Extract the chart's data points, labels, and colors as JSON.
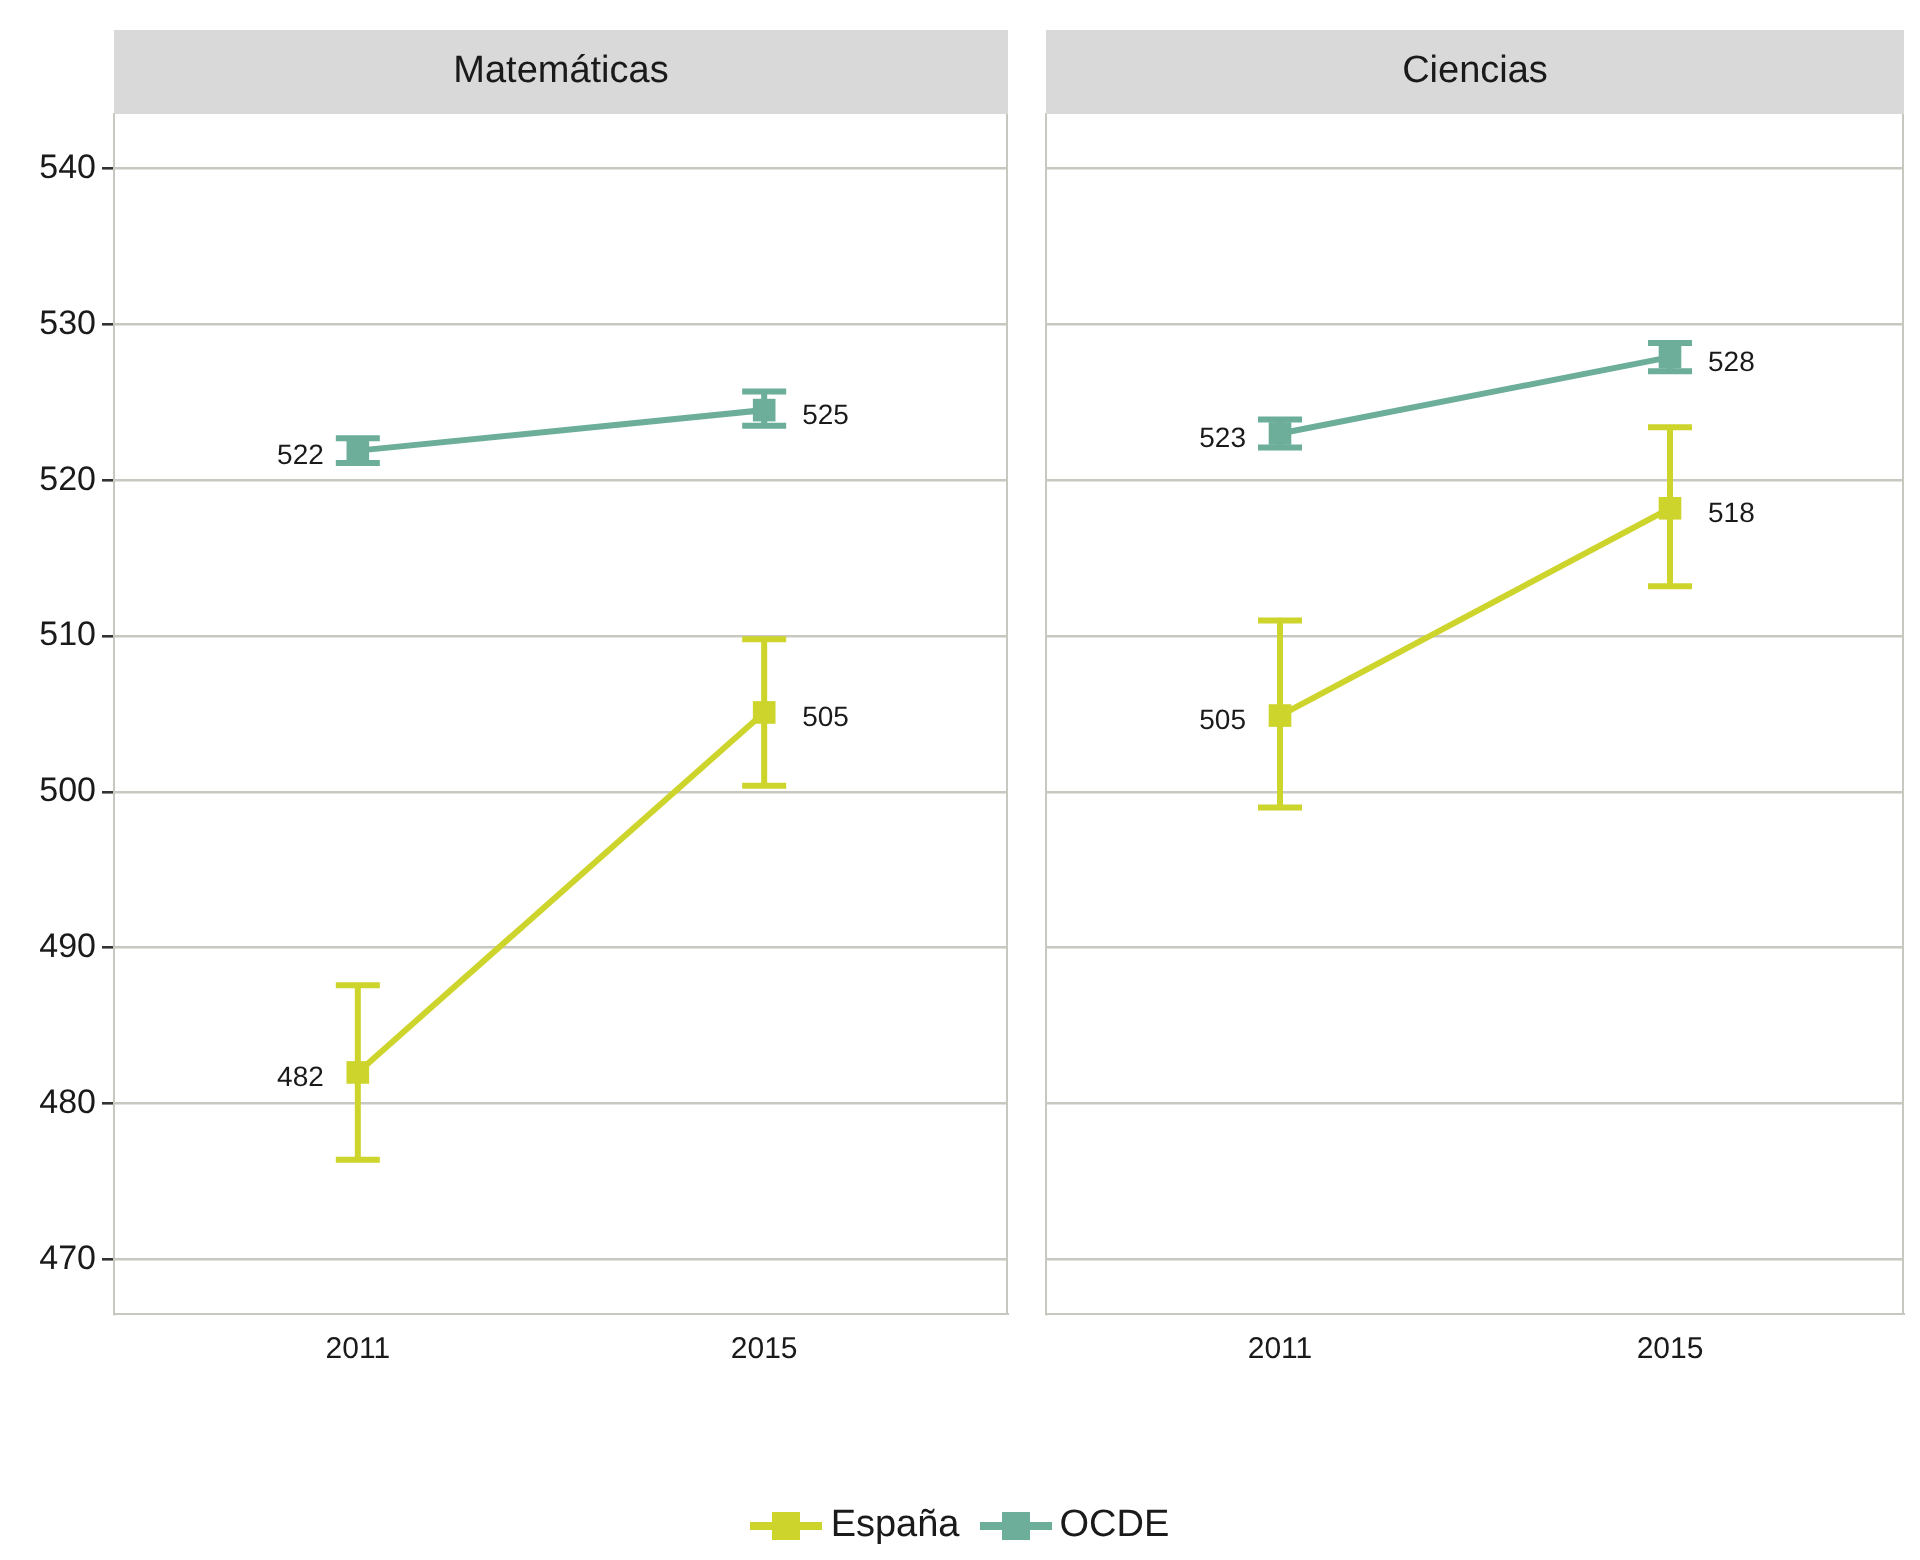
{
  "chart_data": [
    {
      "type": "line",
      "title": "Matemáticas",
      "categories": [
        "2011",
        "2015"
      ],
      "ylim": [
        466.5,
        543.5
      ],
      "yticks": [
        470,
        480,
        490,
        500,
        510,
        520,
        530,
        540
      ],
      "grid": "y",
      "legend": "bottom",
      "marker": "square",
      "line_style": "solid",
      "series": [
        {
          "name": "España",
          "color": "#cdd42b",
          "values": [
            482,
            505.1
          ],
          "errors": [
            [
              476.4,
              487.6
            ],
            [
              500.4,
              509.8
            ]
          ],
          "value_labels": [
            "482",
            "505"
          ]
        },
        {
          "name": "OCDE",
          "color": "#6cae99",
          "values": [
            521.9,
            524.5
          ],
          "errors": [
            [
              521.1,
              522.7
            ],
            [
              523.5,
              525.7
            ]
          ],
          "value_labels": [
            "522",
            "525"
          ]
        }
      ]
    },
    {
      "type": "line",
      "title": "Ciencias",
      "categories": [
        "2011",
        "2015"
      ],
      "ylim": [
        466.5,
        543.5
      ],
      "yticks": [
        470,
        480,
        490,
        500,
        510,
        520,
        530,
        540
      ],
      "grid": "y",
      "tick_labels": "x",
      "marker": "square",
      "line_style": "solid",
      "series": [
        {
          "name": "España",
          "color": "#cdd42b",
          "values": [
            504.9,
            518.2
          ],
          "errors": [
            [
              499,
              511
            ],
            [
              513.2,
              523.4
            ]
          ],
          "value_labels": [
            "505",
            "518"
          ]
        },
        {
          "name": "OCDE",
          "color": "#6cae99",
          "values": [
            523,
            527.9
          ],
          "errors": [
            [
              522.1,
              523.9
            ],
            [
              527,
              528.8
            ]
          ],
          "value_labels": [
            "523",
            "528"
          ]
        }
      ]
    }
  ]
}
